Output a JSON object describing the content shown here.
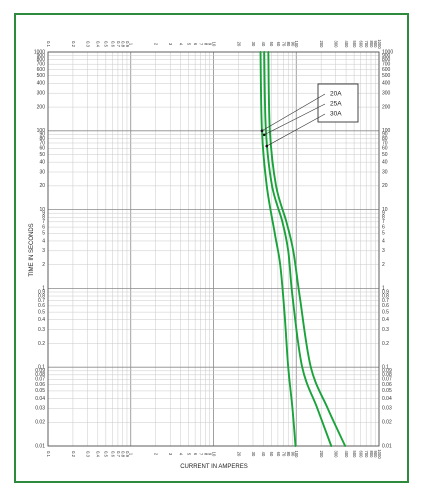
{
  "chart_data": {
    "type": "line",
    "title": "",
    "xlabel": "CURRENT IN AMPERES",
    "ylabel": "TIME IN SECONDS",
    "xscale": "log",
    "yscale": "log",
    "xlim": [
      0.1,
      1000
    ],
    "ylim": [
      0.01,
      1000
    ],
    "grid": true,
    "legend_placement": "top-right",
    "border_color": "#2e8b3e",
    "curve_color": "#1aa33a",
    "x_tick_labels": [
      {
        "value": 0.1,
        "label": "0.1"
      },
      {
        "value": 0.2,
        "label": "0.2"
      },
      {
        "value": 0.3,
        "label": "0.3"
      },
      {
        "value": 0.4,
        "label": "0.4"
      },
      {
        "value": 0.5,
        "label": "0.5"
      },
      {
        "value": 0.6,
        "label": "0.6"
      },
      {
        "value": 0.7,
        "label": "0.7"
      },
      {
        "value": 0.8,
        "label": "0.8"
      },
      {
        "value": 0.9,
        "label": "0.9"
      },
      {
        "value": 1,
        "label": "1"
      },
      {
        "value": 2,
        "label": "2"
      },
      {
        "value": 3,
        "label": "3"
      },
      {
        "value": 4,
        "label": "4"
      },
      {
        "value": 5,
        "label": "5"
      },
      {
        "value": 6,
        "label": "6"
      },
      {
        "value": 7,
        "label": "7"
      },
      {
        "value": 8,
        "label": "8"
      },
      {
        "value": 9,
        "label": "9"
      },
      {
        "value": 10,
        "label": "10"
      },
      {
        "value": 20,
        "label": "20"
      },
      {
        "value": 30,
        "label": "30"
      },
      {
        "value": 40,
        "label": "40"
      },
      {
        "value": 50,
        "label": "50"
      },
      {
        "value": 60,
        "label": "60"
      },
      {
        "value": 70,
        "label": "70"
      },
      {
        "value": 80,
        "label": "80"
      },
      {
        "value": 90,
        "label": "90"
      },
      {
        "value": 100,
        "label": "100"
      },
      {
        "value": 200,
        "label": "200"
      },
      {
        "value": 300,
        "label": "300"
      },
      {
        "value": 400,
        "label": "400"
      },
      {
        "value": 500,
        "label": "500"
      },
      {
        "value": 600,
        "label": "600"
      },
      {
        "value": 700,
        "label": "700"
      },
      {
        "value": 800,
        "label": "800"
      },
      {
        "value": 900,
        "label": "900"
      },
      {
        "value": 1000,
        "label": "1000"
      }
    ],
    "y_tick_labels": [
      {
        "value": 0.01,
        "label": "0.01"
      },
      {
        "value": 0.02,
        "label": "0.02"
      },
      {
        "value": 0.03,
        "label": "0.03"
      },
      {
        "value": 0.04,
        "label": "0.04"
      },
      {
        "value": 0.05,
        "label": "0.05"
      },
      {
        "value": 0.06,
        "label": "0.06"
      },
      {
        "value": 0.07,
        "label": "0.07"
      },
      {
        "value": 0.08,
        "label": "0.08"
      },
      {
        "value": 0.09,
        "label": "0.09"
      },
      {
        "value": 0.1,
        "label": "0.1"
      },
      {
        "value": 0.2,
        "label": "0.2"
      },
      {
        "value": 0.3,
        "label": "0.3"
      },
      {
        "value": 0.4,
        "label": "0.4"
      },
      {
        "value": 0.5,
        "label": "0.5"
      },
      {
        "value": 0.6,
        "label": "0.6"
      },
      {
        "value": 0.7,
        "label": "0.7"
      },
      {
        "value": 0.8,
        "label": "0.8"
      },
      {
        "value": 0.9,
        "label": "0.9"
      },
      {
        "value": 1,
        "label": "1"
      },
      {
        "value": 2,
        "label": "2"
      },
      {
        "value": 3,
        "label": "3"
      },
      {
        "value": 4,
        "label": "4"
      },
      {
        "value": 5,
        "label": "5"
      },
      {
        "value": 6,
        "label": "6"
      },
      {
        "value": 7,
        "label": "7"
      },
      {
        "value": 8,
        "label": "8"
      },
      {
        "value": 9,
        "label": "9"
      },
      {
        "value": 10,
        "label": "10"
      },
      {
        "value": 20,
        "label": "20"
      },
      {
        "value": 30,
        "label": "30"
      },
      {
        "value": 40,
        "label": "40"
      },
      {
        "value": 50,
        "label": "50"
      },
      {
        "value": 60,
        "label": "60"
      },
      {
        "value": 70,
        "label": "70"
      },
      {
        "value": 80,
        "label": "80"
      },
      {
        "value": 90,
        "label": "90"
      },
      {
        "value": 100,
        "label": "100"
      },
      {
        "value": 200,
        "label": "200"
      },
      {
        "value": 300,
        "label": "300"
      },
      {
        "value": 400,
        "label": "400"
      },
      {
        "value": 500,
        "label": "500"
      },
      {
        "value": 600,
        "label": "600"
      },
      {
        "value": 700,
        "label": "700"
      },
      {
        "value": 800,
        "label": "800"
      },
      {
        "value": 900,
        "label": "900"
      },
      {
        "value": 1000,
        "label": "1000"
      }
    ],
    "series": [
      {
        "name": "20A",
        "points": [
          [
            37,
            1000
          ],
          [
            38.5,
            100
          ],
          [
            44,
            20
          ],
          [
            55,
            5
          ],
          [
            64,
            2
          ],
          [
            72,
            0.5
          ],
          [
            80,
            0.1
          ],
          [
            90,
            0.03
          ],
          [
            98,
            0.01
          ]
        ]
      },
      {
        "name": "25A",
        "points": [
          [
            41,
            1000
          ],
          [
            43,
            100
          ],
          [
            51,
            20
          ],
          [
            68,
            7
          ],
          [
            80,
            3
          ],
          [
            90,
            0.8
          ],
          [
            118,
            0.1
          ],
          [
            180,
            0.03
          ],
          [
            265,
            0.01
          ]
        ]
      },
      {
        "name": "30A",
        "points": [
          [
            46,
            1000
          ],
          [
            48,
            100
          ],
          [
            57,
            20
          ],
          [
            76,
            7
          ],
          [
            92,
            3
          ],
          [
            110,
            0.8
          ],
          [
            150,
            0.1
          ],
          [
            240,
            0.03
          ],
          [
            390,
            0.01
          ]
        ]
      }
    ],
    "legend_pointers": [
      {
        "name": "20A",
        "target": [
          38.5,
          100
        ]
      },
      {
        "name": "25A",
        "target": [
          41,
          89
        ]
      },
      {
        "name": "30A",
        "target": [
          44,
          64
        ]
      }
    ]
  }
}
